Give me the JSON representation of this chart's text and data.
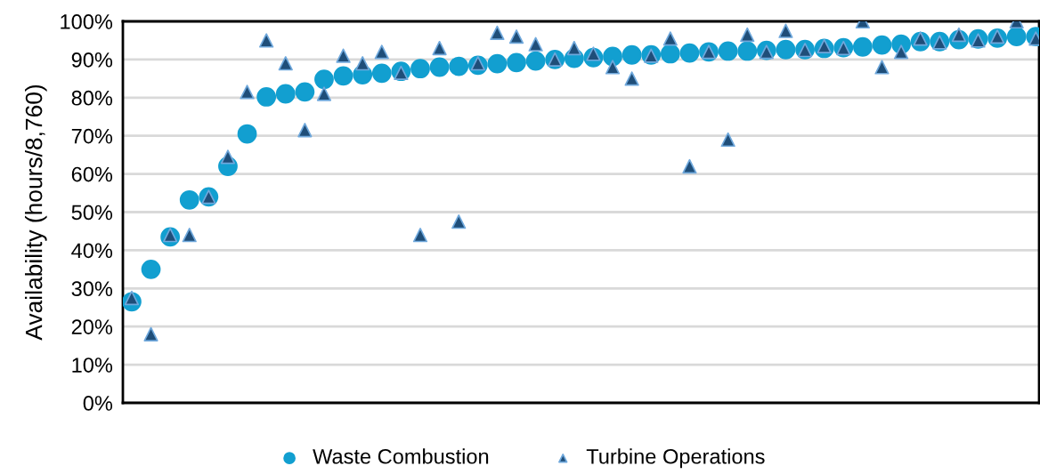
{
  "chart_data": {
    "type": "scatter",
    "ylabel": "Availability (hours/8,760)",
    "categories": [
      null,
      null,
      null,
      null,
      null,
      null,
      null,
      null,
      null,
      null,
      null,
      null,
      null,
      null,
      null,
      null,
      null,
      null,
      null,
      null,
      null,
      null,
      null,
      null,
      null,
      null,
      null,
      null,
      null,
      null,
      null,
      null,
      null,
      null,
      null,
      null,
      null,
      null,
      null,
      null,
      null,
      null,
      null,
      null,
      null,
      null,
      null,
      null
    ],
    "ylim": [
      0,
      100
    ],
    "yticks": [
      {
        "value": 0,
        "label": "0%"
      },
      {
        "value": 10,
        "label": "10%"
      },
      {
        "value": 20,
        "label": "20%"
      },
      {
        "value": 30,
        "label": "30%"
      },
      {
        "value": 40,
        "label": "40%"
      },
      {
        "value": 50,
        "label": "50%"
      },
      {
        "value": 60,
        "label": "60%"
      },
      {
        "value": 70,
        "label": "70%"
      },
      {
        "value": 80,
        "label": "80%"
      },
      {
        "value": 90,
        "label": "90%"
      },
      {
        "value": 100,
        "label": "100%"
      }
    ],
    "grid": "y",
    "legend": "bottom",
    "series": [
      {
        "name": "Waste Combustion",
        "color": "#129fd0",
        "marker": "circle",
        "values": [
          26.5,
          35,
          43.5,
          53.2,
          54,
          62,
          70.5,
          80.2,
          81,
          81.5,
          84.8,
          85.7,
          86,
          86.4,
          86.9,
          87.6,
          88,
          88.2,
          88.5,
          88.9,
          89.2,
          89.6,
          90,
          90.3,
          90.5,
          90.8,
          91.2,
          91.2,
          91.5,
          91.7,
          92,
          92.2,
          92.2,
          92.4,
          92.6,
          92.6,
          92.9,
          93.1,
          93.3,
          93.8,
          94,
          94.7,
          94.7,
          95.2,
          95.4,
          95.6,
          96,
          96
        ]
      },
      {
        "name": "Turbine Operations",
        "color": "#1f4e79",
        "marker": "triangle",
        "values": [
          27.5,
          18,
          44,
          44,
          54,
          64.5,
          81.5,
          95,
          89,
          71.5,
          81,
          91,
          89,
          92,
          86.5,
          44,
          93,
          47.5,
          89,
          97,
          96,
          94,
          90,
          93,
          91.5,
          88,
          85,
          91,
          95.5,
          62,
          92,
          69,
          96.5,
          92,
          97.5,
          92.5,
          93.5,
          93,
          100,
          88,
          92,
          95.5,
          94.5,
          96.5,
          95,
          96,
          100,
          95.5
        ]
      }
    ]
  }
}
